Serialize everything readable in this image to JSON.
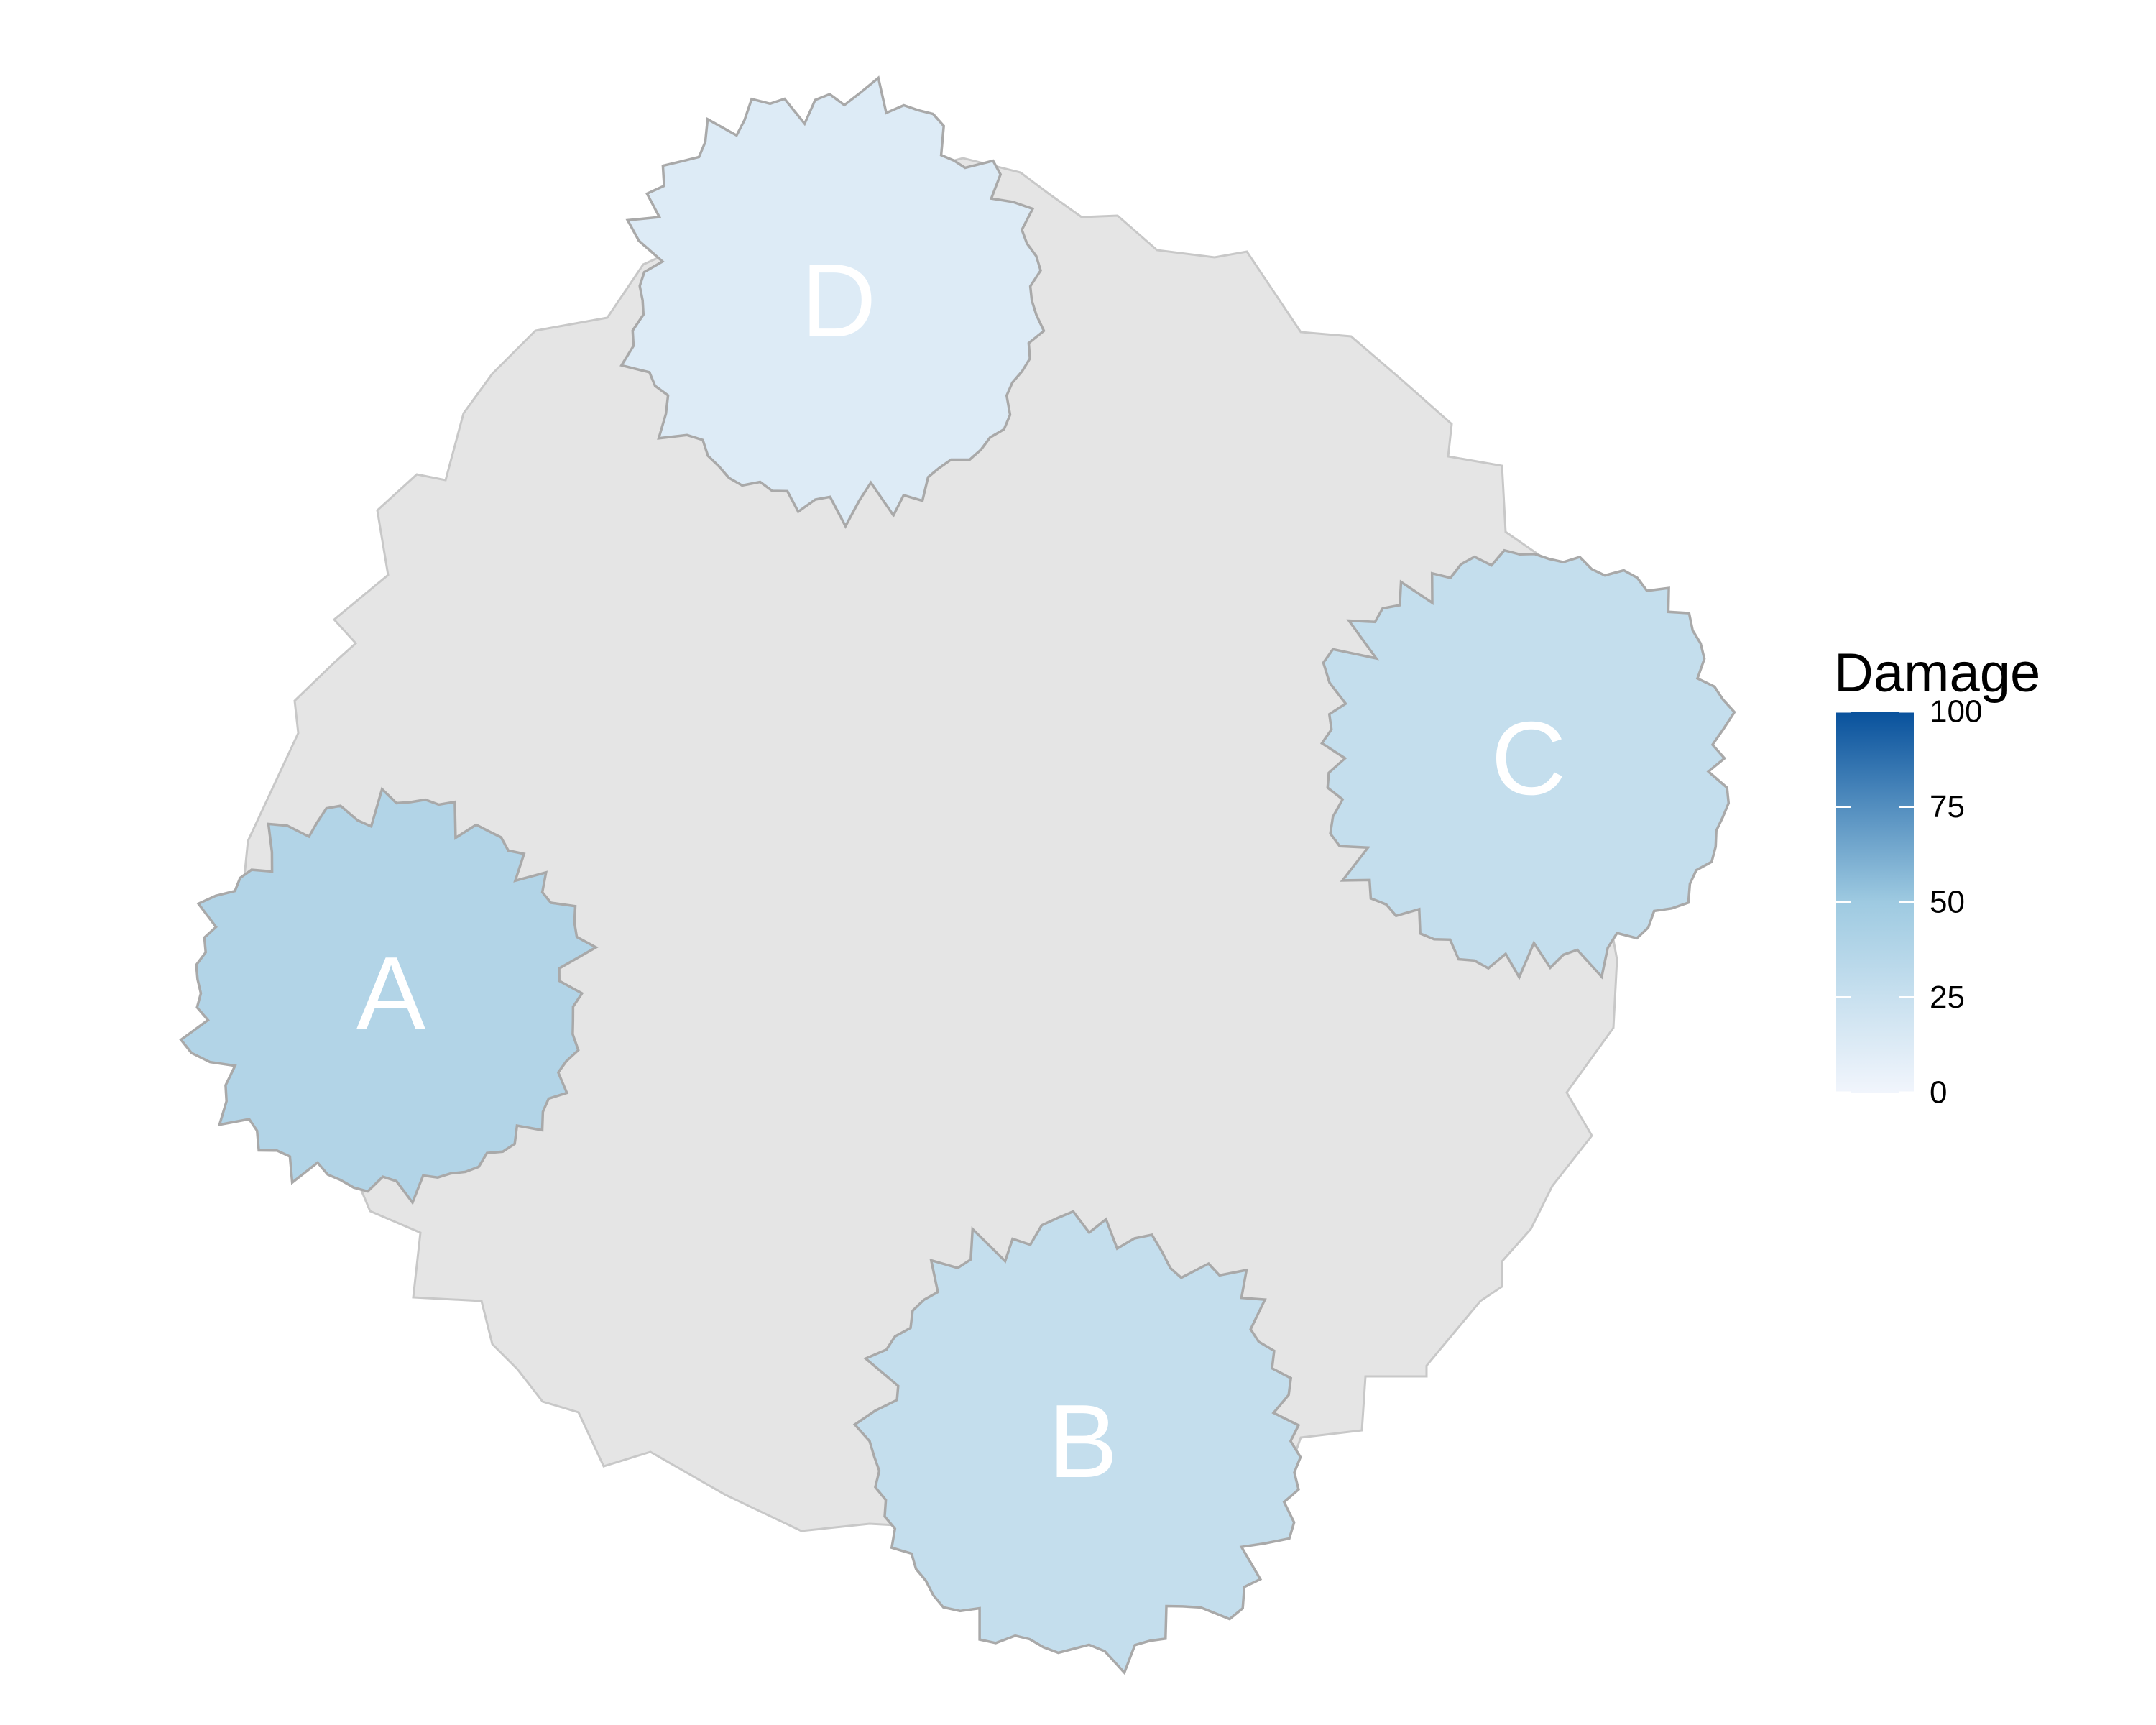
{
  "chart_data": {
    "type": "choropleth",
    "title": "",
    "fill_scale": {
      "name": "Damage",
      "min": 0,
      "max": 100,
      "breaks": [
        0,
        25,
        50,
        75,
        100
      ],
      "colors": {
        "low": "#f1f5fc",
        "mid": "#9ecae1",
        "high": "#08519c"
      }
    },
    "background_region": {
      "name": "",
      "color": "#e5e5e5"
    },
    "zones": [
      {
        "label": "A",
        "damage": 38
      },
      {
        "label": "B",
        "damage": 27
      },
      {
        "label": "C",
        "damage": 27
      },
      {
        "label": "D",
        "damage": 12
      }
    ],
    "legend": {
      "title": "Damage",
      "position": "right"
    }
  }
}
